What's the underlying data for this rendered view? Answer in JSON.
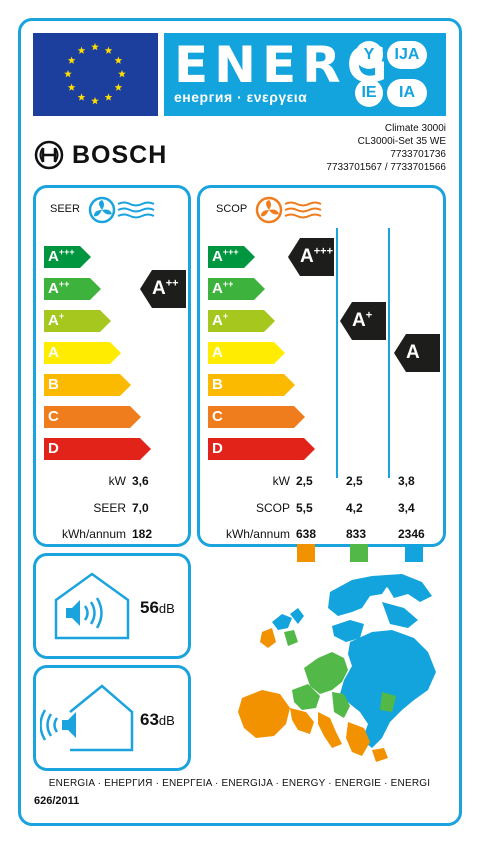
{
  "header": {
    "energ_title": "ENERG",
    "energ_subtitle": "енергия · ενεργεια",
    "lang_codes": [
      "Y",
      "IJA",
      "IE",
      "IA"
    ],
    "colors": {
      "eu_blue": "#1c3f9e",
      "eu_star": "#ffdd00",
      "banner": "#13a3dd"
    }
  },
  "brand": {
    "name": "BOSCH"
  },
  "model": {
    "line1": "Climate 3000i",
    "line2": "CL3000i-Set 35 WE",
    "line3": "7733701736",
    "line4": "7733701567 / 7733701566"
  },
  "scale": {
    "classes": [
      {
        "base": "A",
        "plus": "+++",
        "color": "#00963f"
      },
      {
        "base": "A",
        "plus": "++",
        "color": "#3db23d"
      },
      {
        "base": "A",
        "plus": "+",
        "color": "#a6c81e"
      },
      {
        "base": "A",
        "plus": "",
        "color": "#ffec00"
      },
      {
        "base": "B",
        "plus": "",
        "color": "#fbb900"
      },
      {
        "base": "C",
        "plus": "",
        "color": "#ef7d1e"
      },
      {
        "base": "D",
        "plus": "",
        "color": "#e2231a"
      }
    ]
  },
  "seer": {
    "title": "SEER",
    "rating": {
      "base": "A",
      "plus": "++"
    },
    "kw_label": "kW",
    "kw_value": "3,6",
    "seer_label": "SEER",
    "seer_value": "7,0",
    "kwh_label": "kWh/annum",
    "kwh_value": "182"
  },
  "scop": {
    "title": "SCOP",
    "ratings": [
      {
        "base": "A",
        "plus": "+++"
      },
      {
        "base": "A",
        "plus": "+"
      },
      {
        "base": "A",
        "plus": ""
      }
    ],
    "kw_label": "kW",
    "kw_values": [
      "2,5",
      "2,5",
      "3,8"
    ],
    "scop_label": "SCOP",
    "scop_values": [
      "5,5",
      "4,2",
      "3,4"
    ],
    "kwh_label": "kWh/annum",
    "kwh_values": [
      "638",
      "833",
      "2346"
    ],
    "zone_colors": [
      "#f39200",
      "#52b848",
      "#13a3dd"
    ]
  },
  "noise": {
    "indoor_value": "56",
    "indoor_unit": "dB",
    "outdoor_value": "63",
    "outdoor_unit": "dB"
  },
  "footer": {
    "text": "ENERGIA · ЕНЕРГИЯ · ΕΝΕΡΓΕΙΑ · ENERGIJA · ENERGY · ENERGIE · ENERGI",
    "regulation": "626/2011"
  }
}
